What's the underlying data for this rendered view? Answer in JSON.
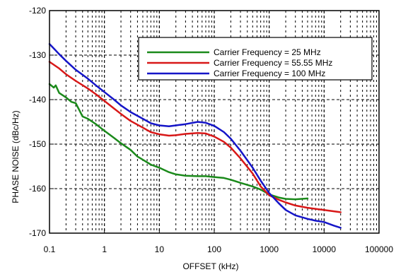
{
  "chart_data": {
    "type": "line",
    "title": "",
    "xlabel": "OFFSET (kHz)",
    "ylabel": "PHASE NOISE (dBc/Hz)",
    "x_scale": "log",
    "xlim": [
      0.1,
      100000
    ],
    "ylim": [
      -170,
      -120
    ],
    "x_ticks": [
      0.1,
      1,
      10,
      100,
      1000,
      10000,
      100000
    ],
    "x_tick_labels": [
      "0.1",
      "1",
      "10",
      "100",
      "1000",
      "10000",
      "100000"
    ],
    "y_ticks": [
      -120,
      -130,
      -140,
      -150,
      -160,
      -170
    ],
    "y_tick_labels": [
      "-120",
      "-130",
      "-140",
      "-150",
      "-160",
      "-170"
    ],
    "grid": true,
    "legend_position": "top-right",
    "series": [
      {
        "name": "Carrier Frequency  = 25 MHz",
        "color": "#1b8a1b",
        "points": [
          [
            0.1,
            -136.5
          ],
          [
            0.12,
            -137.3
          ],
          [
            0.13,
            -136.8
          ],
          [
            0.15,
            -138.5
          ],
          [
            0.2,
            -139.5
          ],
          [
            0.25,
            -140.5
          ],
          [
            0.3,
            -140.8
          ],
          [
            0.4,
            -143.8
          ],
          [
            0.5,
            -144.3
          ],
          [
            0.7,
            -145.5
          ],
          [
            1,
            -147
          ],
          [
            1.5,
            -148.6
          ],
          [
            2,
            -149.8
          ],
          [
            3,
            -151.3
          ],
          [
            4,
            -152.8
          ],
          [
            5,
            -153.5
          ],
          [
            7,
            -154.6
          ],
          [
            10,
            -155.3
          ],
          [
            15,
            -156.3
          ],
          [
            20,
            -156.8
          ],
          [
            30,
            -157.1
          ],
          [
            50,
            -157.2
          ],
          [
            70,
            -157.2
          ],
          [
            100,
            -157.4
          ],
          [
            150,
            -157.6
          ],
          [
            200,
            -158
          ],
          [
            300,
            -158.7
          ],
          [
            500,
            -159.5
          ],
          [
            700,
            -160.2
          ],
          [
            1000,
            -161.3
          ],
          [
            1500,
            -162
          ],
          [
            2000,
            -162.3
          ],
          [
            3000,
            -162.4
          ],
          [
            5000,
            -162.2
          ]
        ]
      },
      {
        "name": "Carrier Frequency  = 55.55 MHz",
        "color": "#d81818",
        "points": [
          [
            0.1,
            -131.5
          ],
          [
            0.15,
            -133
          ],
          [
            0.2,
            -134.3
          ],
          [
            0.3,
            -135.8
          ],
          [
            0.5,
            -137.5
          ],
          [
            0.7,
            -138.8
          ],
          [
            1,
            -140.3
          ],
          [
            1.5,
            -142
          ],
          [
            2,
            -143.2
          ],
          [
            3,
            -144.8
          ],
          [
            5,
            -146.3
          ],
          [
            7,
            -147.3
          ],
          [
            10,
            -147.8
          ],
          [
            15,
            -148.1
          ],
          [
            20,
            -148
          ],
          [
            30,
            -147.7
          ],
          [
            50,
            -147.5
          ],
          [
            70,
            -147.6
          ],
          [
            100,
            -148.3
          ],
          [
            150,
            -149.5
          ],
          [
            200,
            -150.8
          ],
          [
            300,
            -153.2
          ],
          [
            500,
            -156.6
          ],
          [
            700,
            -159.5
          ],
          [
            1000,
            -161.5
          ],
          [
            1500,
            -162.5
          ],
          [
            2000,
            -163.1
          ],
          [
            3000,
            -163.8
          ],
          [
            5000,
            -164.3
          ],
          [
            10000,
            -164.8
          ],
          [
            20000,
            -165.3
          ]
        ]
      },
      {
        "name": "Carrier Frequency = 100 MHz",
        "color": "#1515c8",
        "points": [
          [
            0.1,
            -127.5
          ],
          [
            0.12,
            -128.5
          ],
          [
            0.15,
            -129.8
          ],
          [
            0.2,
            -131.3
          ],
          [
            0.3,
            -133.3
          ],
          [
            0.5,
            -135.3
          ],
          [
            0.7,
            -136.8
          ],
          [
            1,
            -138.3
          ],
          [
            1.5,
            -140
          ],
          [
            2,
            -141.3
          ],
          [
            3,
            -142.8
          ],
          [
            5,
            -144.3
          ],
          [
            7,
            -145.3
          ],
          [
            10,
            -145.8
          ],
          [
            15,
            -146
          ],
          [
            20,
            -145.8
          ],
          [
            30,
            -145.5
          ],
          [
            50,
            -145
          ],
          [
            70,
            -145.2
          ],
          [
            100,
            -145.9
          ],
          [
            150,
            -147.3
          ],
          [
            200,
            -148.8
          ],
          [
            300,
            -151.5
          ],
          [
            500,
            -155.3
          ],
          [
            700,
            -158.2
          ],
          [
            1000,
            -161
          ],
          [
            1500,
            -163.3
          ],
          [
            2000,
            -164.8
          ],
          [
            3000,
            -166
          ],
          [
            5000,
            -166.8
          ],
          [
            7000,
            -167.2
          ],
          [
            10000,
            -167.5
          ],
          [
            15000,
            -168.3
          ],
          [
            20000,
            -168.8
          ]
        ]
      }
    ]
  }
}
